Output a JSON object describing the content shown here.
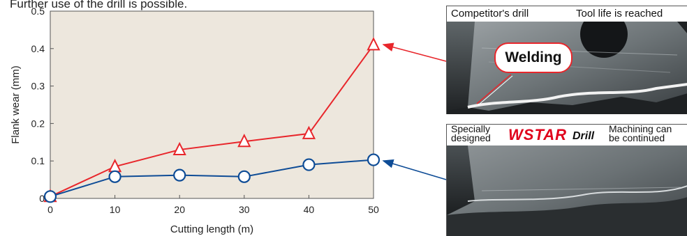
{
  "caption": "Further use of the drill is possible.",
  "chart_data": {
    "type": "line",
    "xlabel": "Cutting length (m)",
    "ylabel": "Flank wear (mm)",
    "xlim": [
      0,
      50
    ],
    "ylim": [
      0,
      0.5
    ],
    "x_ticks": [
      0,
      10,
      20,
      30,
      40,
      50
    ],
    "y_ticks": [
      0,
      0.1,
      0.2,
      0.3,
      0.4,
      0.5
    ],
    "x_tick_labels": [
      "0",
      "10",
      "20",
      "30",
      "40",
      "50"
    ],
    "y_tick_labels": [
      "0",
      "0.1",
      "0.2",
      "0.3",
      "0.4",
      "0.5"
    ],
    "grid": false,
    "series": [
      {
        "marker": "triangle",
        "color": "#e8262b",
        "x": [
          0,
          10,
          20,
          30,
          40,
          50
        ],
        "values": [
          0.005,
          0.085,
          0.13,
          0.152,
          0.173,
          0.41
        ]
      },
      {
        "marker": "circle",
        "color": "#0e4c96",
        "x": [
          0,
          10,
          20,
          30,
          40,
          50
        ],
        "values": [
          0.005,
          0.058,
          0.062,
          0.058,
          0.09,
          0.103
        ]
      }
    ]
  },
  "photos": {
    "competitor": {
      "left_label": "Competitor's drill",
      "right_label": "Tool life is reached",
      "callout": "Welding"
    },
    "wstar": {
      "label_line1": "Specially",
      "label_line2": "designed",
      "logo": "WSTAR",
      "logo_suffix": "Drill",
      "right_line1": "Machining can",
      "right_line2": "be continued"
    }
  },
  "colors": {
    "plot_background": "#ede7dd",
    "axis": "#555555"
  }
}
